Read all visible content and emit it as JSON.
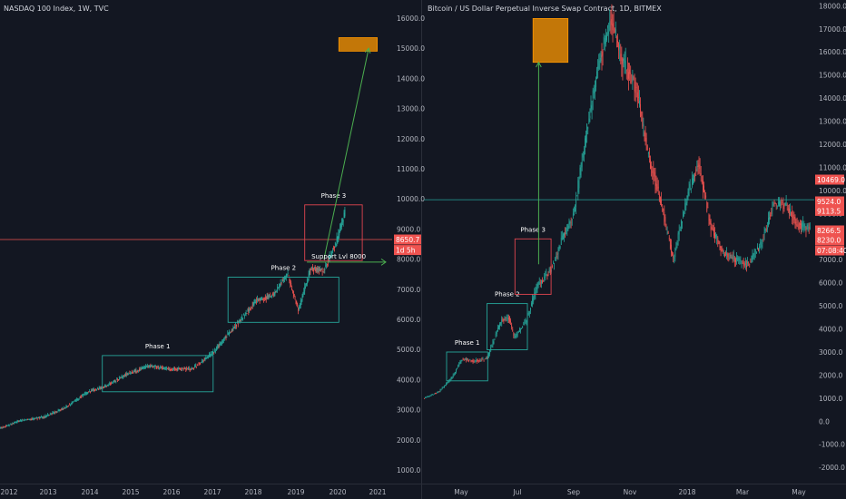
{
  "colors": {
    "background": "#131722",
    "divider": "#2a2e39",
    "up_candle": "#26a69a",
    "down_candle": "#ef5350",
    "phase_box": "#26a69a",
    "phase3_box": "#e0454f",
    "target_box": "#ff9800",
    "arrow": "#4caf50",
    "hline_red": "#ef5350",
    "hline_green": "#26a69a"
  },
  "chart_data": [
    {
      "type": "candlestick",
      "title": "NASDAQ 100 Index, 1W, TVC",
      "x_labels": [
        "2012",
        "2013",
        "2014",
        "2015",
        "2016",
        "2017",
        "2018",
        "2019",
        "2020",
        "2021"
      ],
      "y_ticks": [
        1000,
        2000,
        3000,
        4000,
        5000,
        6000,
        7000,
        8000,
        9000,
        10000,
        11000,
        12000,
        13000,
        14000,
        15000,
        16000
      ],
      "y_tick_labels": [
        "1000.0",
        "2000.0",
        "3000.0",
        "4000.0",
        "5000.0",
        "6000.0",
        "7000.0",
        "8000.0",
        "9000.0",
        "10000.0",
        "11000.0",
        "12000.0",
        "13000.0",
        "14000.0",
        "15000.0",
        "16000.0"
      ],
      "xlim": [
        2012.0,
        2021.2
      ],
      "ylim": [
        550,
        16600
      ],
      "path": [
        [
          2012.0,
          2400
        ],
        [
          2012.5,
          2650
        ],
        [
          2013.0,
          2750
        ],
        [
          2013.5,
          3050
        ],
        [
          2014.0,
          3550
        ],
        [
          2014.5,
          3800
        ],
        [
          2015.0,
          4200
        ],
        [
          2015.5,
          4450
        ],
        [
          2016.0,
          4350
        ],
        [
          2016.5,
          4350
        ],
        [
          2017.0,
          4900
        ],
        [
          2017.5,
          5750
        ],
        [
          2018.0,
          6600
        ],
        [
          2018.4,
          6800
        ],
        [
          2018.75,
          7500
        ],
        [
          2019.0,
          6300
        ],
        [
          2019.3,
          7700
        ],
        [
          2019.6,
          7600
        ],
        [
          2019.9,
          8600
        ],
        [
          2020.05,
          9300
        ],
        [
          2020.1,
          9600
        ]
      ],
      "annotations": {
        "phase1": {
          "label": "Phase 1",
          "x0": 2014.4,
          "x1": 2017.0,
          "y0": 3600,
          "y1": 4800
        },
        "phase2": {
          "label": "Phase 2",
          "x0": 2017.35,
          "x1": 2019.95,
          "y0": 5900,
          "y1": 7400
        },
        "phase3": {
          "label": "Phase 3",
          "x0": 2019.15,
          "x1": 2020.5,
          "y0": 7950,
          "y1": 9800
        },
        "target": {
          "x0": 2019.95,
          "x1": 2020.85,
          "y0": 14900,
          "y1": 15350
        },
        "arrow": {
          "from": [
            2019.6,
            8000
          ],
          "to": [
            2020.65,
            15000
          ]
        },
        "support": {
          "label": "Support Lvl 8000",
          "x0": 2019.2,
          "x1": 2021.05,
          "y": 7900
        },
        "hline": {
          "y": 8650.7
        }
      },
      "price_badges": [
        {
          "label": "8650.7",
          "y": 8650.7
        },
        {
          "label": "1d 5h",
          "y": 8300
        }
      ]
    },
    {
      "type": "candlestick",
      "title": "Bitcoin / US Dollar Perpetual Inverse Swap Contract, 1D, BITMEX",
      "x_labels": [
        "May",
        "Jul",
        "Sep",
        "Nov",
        "2018",
        "Mar",
        "May"
      ],
      "y_ticks": [
        -2000,
        -1000,
        0,
        1000,
        2000,
        3000,
        4000,
        5000,
        6000,
        7000,
        8000,
        9000,
        10000,
        11000,
        12000,
        13000,
        14000,
        15000,
        16000,
        17000,
        18000
      ],
      "y_tick_labels": [
        "-2000.0",
        "-1000.0",
        "0.0",
        "1000.0",
        "2000.0",
        "3000.0",
        "4000.0",
        "5000.0",
        "6000.0",
        "7000.0",
        "8000.0",
        "9000.0",
        "10000.0",
        "11000.0",
        "12000.0",
        "13000.0",
        "14000.0",
        "15000.0",
        "16000.0",
        "17000.0",
        "18000.0"
      ],
      "xlim": [
        0,
        14
      ],
      "ylim": [
        -2700,
        18250
      ],
      "path": [
        [
          0,
          1000
        ],
        [
          1.2,
          1300
        ],
        [
          2.2,
          1900
        ],
        [
          3,
          2700
        ],
        [
          4,
          2600
        ],
        [
          5,
          2700
        ],
        [
          6.2,
          4400
        ],
        [
          6.8,
          4500
        ],
        [
          7.2,
          3600
        ],
        [
          8.2,
          4400
        ],
        [
          9,
          5800
        ],
        [
          10.1,
          6500
        ],
        [
          11,
          7800
        ],
        [
          12,
          9000
        ],
        [
          13,
          12500
        ],
        [
          14,
          15500
        ],
        [
          15,
          17500
        ],
        [
          16,
          15500
        ],
        [
          17,
          14500
        ],
        [
          18,
          11500
        ],
        [
          19,
          9500
        ],
        [
          20,
          7000
        ],
        [
          21,
          9500
        ],
        [
          22,
          11200
        ],
        [
          23,
          8500
        ],
        [
          24,
          7300
        ],
        [
          25,
          7000
        ],
        [
          26,
          6800
        ],
        [
          27,
          7600
        ],
        [
          28,
          9300
        ],
        [
          29,
          9400
        ],
        [
          30,
          8500
        ],
        [
          31,
          8300
        ]
      ],
      "annotations": {
        "phase1": {
          "label": "Phase 1",
          "x0": 1.82,
          "x1": 5.12,
          "y0": 1750,
          "y1": 3000
        },
        "phase2": {
          "label": "Phase 2",
          "x0": 5.06,
          "x1": 8.3,
          "y0": 3100,
          "y1": 5100
        },
        "phase3": {
          "label": "Phase 3",
          "x0": 7.3,
          "x1": 10.2,
          "y0": 5500,
          "y1": 7900
        },
        "target": {
          "x0": 8.75,
          "x1": 11.55,
          "y0": 15550,
          "y1": 17450
        },
        "arrow": {
          "from": [
            9.2,
            6800
          ],
          "to": [
            9.2,
            15550
          ]
        },
        "hline": {
          "y": 9600
        }
      },
      "price_badges": [
        {
          "label": "10469.0",
          "y": 10469
        },
        {
          "label": "9524.0",
          "y": 9524
        },
        {
          "label": "9113.5",
          "y": 9113.5
        },
        {
          "label": "8266.5",
          "y": 8266.5
        },
        {
          "label": "8230.0",
          "y": 7850
        },
        {
          "label": "07:08:40",
          "y": 7400
        }
      ]
    }
  ]
}
